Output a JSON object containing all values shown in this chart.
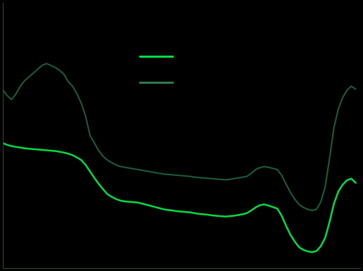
{
  "background_color": "#000000",
  "ax_background_color": "#000000",
  "line_color_consumer": "#1a5c38",
  "line_color_mortgage": "#00dd44",
  "legend_line_consumer": "#2d7a4f",
  "legend_line_mortgage": "#00dd44",
  "spine_color": "#2d4a2d",
  "years": [
    2004.0,
    2004.25,
    2004.5,
    2004.75,
    2005.0,
    2005.25,
    2005.5,
    2005.75,
    2006.0,
    2006.25,
    2006.5,
    2006.75,
    2007.0,
    2007.25,
    2007.5,
    2007.75,
    2008.0,
    2008.25,
    2008.5,
    2008.75,
    2009.0,
    2009.25,
    2009.5,
    2009.75,
    2010.0,
    2010.25,
    2010.5,
    2010.75,
    2011.0,
    2011.25,
    2011.5,
    2011.75,
    2012.0,
    2012.25,
    2012.5,
    2012.75,
    2013.0,
    2013.25,
    2013.5,
    2013.75,
    2014.0,
    2014.25,
    2014.5,
    2014.75,
    2015.0,
    2015.25,
    2015.5,
    2015.75,
    2016.0,
    2016.25,
    2016.5,
    2016.75,
    2017.0,
    2017.25,
    2017.5,
    2017.75,
    2018.0,
    2018.25,
    2018.5,
    2018.75,
    2019.0,
    2019.25,
    2019.5,
    2019.75,
    2020.0,
    2020.25,
    2020.5,
    2020.75,
    2021.0,
    2021.25,
    2021.5,
    2021.75,
    2022.0,
    2022.25,
    2022.5,
    2022.75,
    2023.0,
    2023.25,
    2023.5,
    2023.75,
    2024.0,
    2024.25
  ],
  "consumer_debt": [
    7.2,
    7.05,
    6.95,
    7.1,
    7.3,
    7.45,
    7.55,
    7.65,
    7.75,
    7.85,
    7.9,
    7.85,
    7.8,
    7.72,
    7.62,
    7.42,
    7.3,
    7.1,
    6.85,
    6.5,
    6.0,
    5.8,
    5.6,
    5.45,
    5.35,
    5.28,
    5.22,
    5.18,
    5.16,
    5.14,
    5.12,
    5.1,
    5.08,
    5.06,
    5.04,
    5.02,
    5.0,
    4.98,
    4.97,
    4.96,
    4.95,
    4.94,
    4.93,
    4.92,
    4.9,
    4.89,
    4.88,
    4.87,
    4.86,
    4.85,
    4.84,
    4.83,
    4.84,
    4.86,
    4.88,
    4.9,
    4.92,
    5.0,
    5.1,
    5.15,
    5.18,
    5.16,
    5.13,
    5.1,
    4.95,
    4.72,
    4.5,
    4.32,
    4.18,
    4.1,
    4.05,
    4.02,
    4.05,
    4.25,
    4.65,
    5.4,
    6.2,
    6.7,
    7.0,
    7.2,
    7.3,
    7.22
  ],
  "mortgage_debt": [
    5.8,
    5.75,
    5.72,
    5.7,
    5.68,
    5.66,
    5.65,
    5.64,
    5.63,
    5.62,
    5.61,
    5.6,
    5.59,
    5.57,
    5.55,
    5.52,
    5.48,
    5.42,
    5.35,
    5.22,
    5.05,
    4.88,
    4.72,
    4.58,
    4.45,
    4.38,
    4.32,
    4.28,
    4.26,
    4.25,
    4.24,
    4.23,
    4.2,
    4.17,
    4.14,
    4.11,
    4.08,
    4.05,
    4.03,
    4.02,
    4.0,
    3.99,
    3.98,
    3.97,
    3.95,
    3.93,
    3.92,
    3.91,
    3.89,
    3.88,
    3.87,
    3.86,
    3.87,
    3.88,
    3.9,
    3.92,
    3.95,
    4.02,
    4.1,
    4.16,
    4.18,
    4.15,
    4.11,
    4.07,
    3.88,
    3.62,
    3.38,
    3.2,
    3.05,
    2.98,
    2.94,
    2.92,
    2.95,
    3.08,
    3.3,
    3.72,
    4.2,
    4.52,
    4.7,
    4.82,
    4.86,
    4.75
  ],
  "xlim": [
    2004.0,
    2024.5
  ],
  "ylim": [
    2.5,
    9.5
  ],
  "linewidth_consumer": 1.5,
  "linewidth_mortgage": 1.8
}
